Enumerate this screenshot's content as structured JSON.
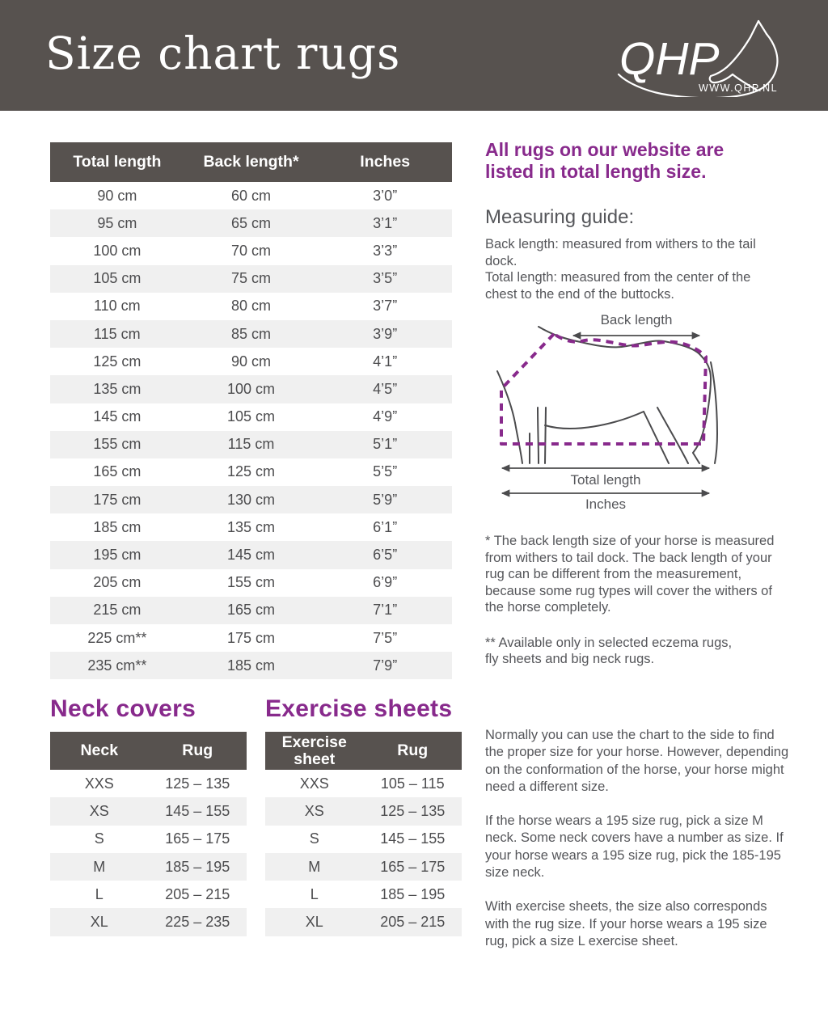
{
  "colors": {
    "header_bg": "#57524F",
    "accent_purple": "#882A8C",
    "row_alt": "#F0F0F0",
    "text_gray": "#55565A"
  },
  "header": {
    "title": "Size chart rugs",
    "logo": {
      "brand": "QHP",
      "url": "WWW.QHP.NL"
    }
  },
  "main_table": {
    "columns": [
      "Total length",
      "Back length*",
      "Inches"
    ],
    "rows": [
      [
        "90 cm",
        "60 cm",
        "3’0”"
      ],
      [
        "95 cm",
        "65 cm",
        "3’1”"
      ],
      [
        "100 cm",
        "70 cm",
        "3’3”"
      ],
      [
        "105 cm",
        "75 cm",
        "3’5”"
      ],
      [
        "110 cm",
        "80 cm",
        "3’7”"
      ],
      [
        "115 cm",
        "85 cm",
        "3’9”"
      ],
      [
        "125 cm",
        "90 cm",
        "4’1”"
      ],
      [
        "135 cm",
        "100 cm",
        "4’5”"
      ],
      [
        "145 cm",
        "105 cm",
        "4’9”"
      ],
      [
        "155 cm",
        "115 cm",
        "5’1”"
      ],
      [
        "165 cm",
        "125 cm",
        "5’5”"
      ],
      [
        "175 cm",
        "130 cm",
        "5’9”"
      ],
      [
        "185 cm",
        "135 cm",
        "6’1”"
      ],
      [
        "195 cm",
        "145 cm",
        "6’5”"
      ],
      [
        "205 cm",
        "155 cm",
        "6’9”"
      ],
      [
        "215 cm",
        "165 cm",
        "7’1”"
      ],
      [
        "225 cm**",
        "175 cm",
        "7’5”"
      ],
      [
        "235 cm**",
        "185 cm",
        "7’9”"
      ]
    ]
  },
  "sidebar": {
    "intro_heading": "All rugs on our website are listed in total length size.",
    "measuring_guide_title": "Measuring guide:",
    "measuring_guide_lines": [
      "Back length: measured from withers to the tail dock.",
      "Total length: measured from the center of the chest to the end of the buttocks."
    ],
    "diagram_labels": {
      "back_length": "Back length",
      "total_length": "Total length",
      "inches": "Inches"
    },
    "footnote_one": "* The back length size of your horse is measured from withers to tail dock. The back length of your rug can be different from the measurement, because some rug types will cover the withers of the horse completely.",
    "footnote_two": "** Available only in selected eczema rugs,\nfly sheets and big neck rugs."
  },
  "neck_covers": {
    "title": "Neck covers",
    "columns": [
      "Neck",
      "Rug"
    ],
    "rows": [
      [
        "XXS",
        "125 – 135"
      ],
      [
        "XS",
        "145 – 155"
      ],
      [
        "S",
        "165 – 175"
      ],
      [
        "M",
        "185 – 195"
      ],
      [
        "L",
        "205 – 215"
      ],
      [
        "XL",
        "225 – 235"
      ]
    ]
  },
  "exercise_sheets": {
    "title": "Exercise sheets",
    "columns": [
      "Exercise sheet",
      "Rug"
    ],
    "rows": [
      [
        "XXS",
        "105 – 115"
      ],
      [
        "XS",
        "125 – 135"
      ],
      [
        "S",
        "145 – 155"
      ],
      [
        "M",
        "165 – 175"
      ],
      [
        "L",
        "185 – 195"
      ],
      [
        "XL",
        "205 – 215"
      ]
    ]
  },
  "bottom_text": {
    "paragraphs": [
      "Normally you can use the chart to the side to find the proper size for your horse.  However, depending on the conformation of the horse, your horse might need a different size.",
      "If the horse wears a 195 size rug, pick a size M neck. Some neck covers have a number as size. If your horse wears a 195 size rug, pick the 185-195 size neck.",
      "With exercise sheets, the size also corresponds with the rug size. If your horse wears a 195 size rug, pick a size L exercise sheet."
    ]
  }
}
